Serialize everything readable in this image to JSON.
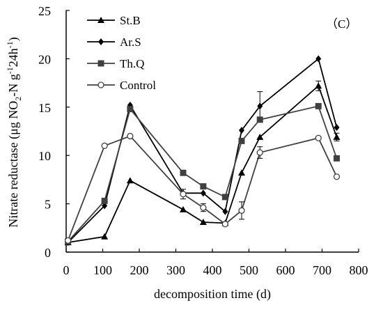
{
  "chart_data": {
    "type": "line",
    "panel_label": "（C）",
    "xlabel": "decomposition time (d)",
    "ylabel_parts": [
      "Nitrate reductase (μg NO",
      "2",
      "-N g",
      "-1",
      "24h",
      "-1",
      ")"
    ],
    "xlim": [
      0,
      800
    ],
    "ylim": [
      0,
      25
    ],
    "x_ticks": [
      0,
      100,
      200,
      300,
      400,
      500,
      600,
      700,
      800
    ],
    "y_ticks": [
      0,
      5,
      10,
      15,
      20,
      25
    ],
    "grid": false,
    "legend_position": "top-left",
    "series": [
      {
        "name": "St.B",
        "marker": "triangle",
        "color": "#000000",
        "x": [
          5,
          105,
          175,
          320,
          375,
          435,
          480,
          530,
          690,
          740
        ],
        "y": [
          1.0,
          1.6,
          7.4,
          4.4,
          3.1,
          3.0,
          8.2,
          11.9,
          17.2,
          11.9
        ],
        "err": [
          0,
          0,
          0,
          0,
          0,
          0,
          0,
          0,
          0.5,
          0.4
        ]
      },
      {
        "name": "Ar.S",
        "marker": "diamond",
        "color": "#000000",
        "x": [
          5,
          105,
          175,
          320,
          375,
          435,
          480,
          530,
          690,
          740
        ],
        "y": [
          1.0,
          4.8,
          15.2,
          6.1,
          6.1,
          4.2,
          12.6,
          15.1,
          20.0,
          12.9
        ],
        "err": [
          0,
          0,
          0,
          0,
          0,
          0,
          0,
          1.5,
          0,
          0
        ]
      },
      {
        "name": "Th.Q",
        "marker": "square",
        "color": "#404040",
        "x": [
          5,
          105,
          175,
          320,
          375,
          435,
          480,
          530,
          690,
          740
        ],
        "y": [
          1.1,
          5.3,
          14.8,
          8.2,
          6.8,
          5.7,
          11.5,
          13.7,
          15.1,
          9.7
        ],
        "err": [
          0,
          0,
          0,
          0,
          0,
          0,
          0,
          0,
          0,
          0
        ]
      },
      {
        "name": "Control",
        "marker": "circle-open",
        "color": "#404040",
        "x": [
          5,
          105,
          175,
          320,
          375,
          435,
          480,
          530,
          690,
          740
        ],
        "y": [
          1.2,
          11.0,
          12.0,
          6.0,
          4.6,
          2.9,
          4.3,
          10.3,
          11.8,
          7.8
        ],
        "err": [
          0,
          0,
          0,
          0.5,
          0.4,
          0,
          0.9,
          0.6,
          0,
          0
        ]
      }
    ]
  }
}
